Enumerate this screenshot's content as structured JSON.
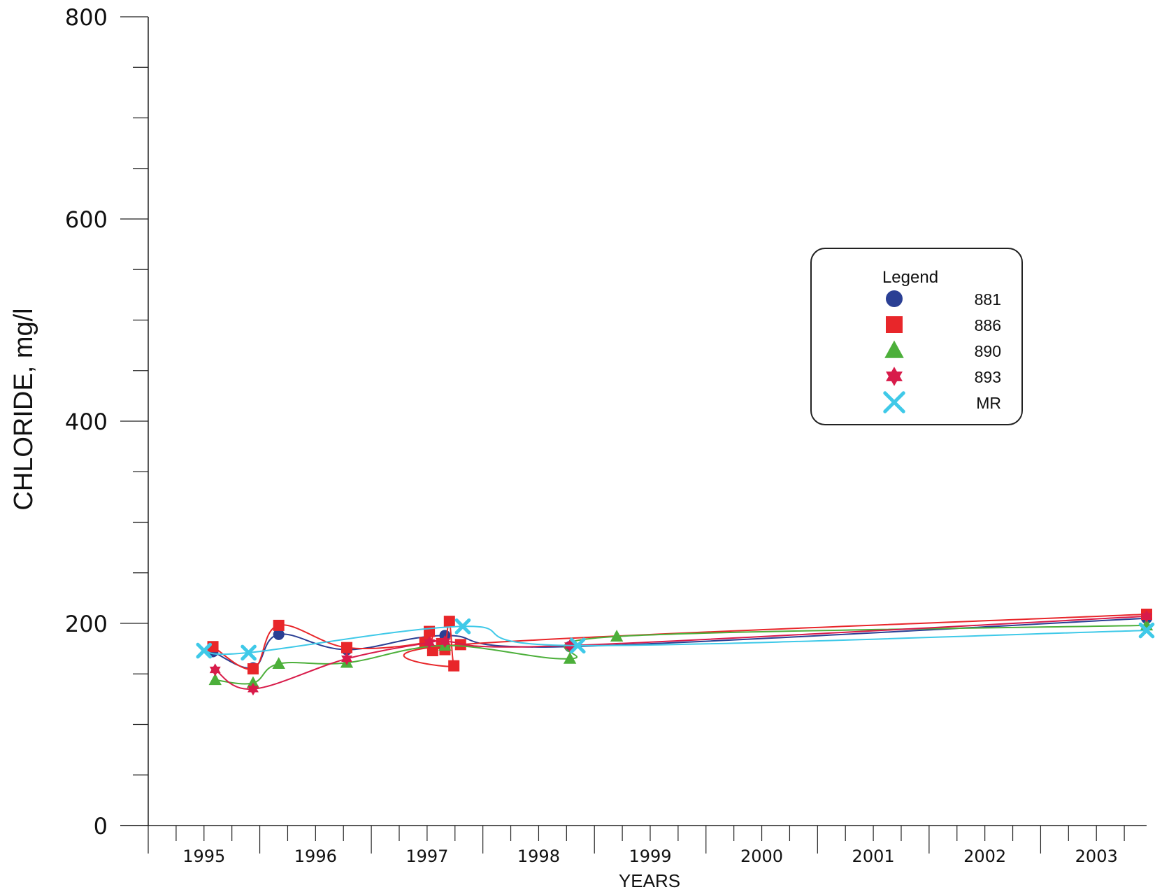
{
  "chart_data": {
    "type": "line",
    "title": "",
    "xlabel": "YEARS",
    "ylabel": "CHLORIDE, mg/l",
    "xlim": [
      1994.5,
      2003.45
    ],
    "ylim": [
      0,
      800
    ],
    "y_ticks": [
      0,
      200,
      400,
      600,
      800
    ],
    "y_tick_labels": [
      "0",
      "200",
      "400",
      "600",
      "800"
    ],
    "x_tick_labels": [
      "1995",
      "1996",
      "1997",
      "1998",
      "1999",
      "2000",
      "2001",
      "2002",
      "2003"
    ],
    "x_tick_values": [
      1995,
      1996,
      1997,
      1998,
      1999,
      2000,
      2001,
      2002,
      2003
    ],
    "grid": false,
    "legend": {
      "title": "Legend",
      "placement": "right",
      "entries": [
        "881",
        "886",
        "890",
        "893",
        "MR"
      ]
    },
    "series": [
      {
        "name": "881",
        "color": "#2a3f94",
        "marker": "circle",
        "x": [
          1995.08,
          1995.44,
          1995.67,
          1996.28,
          1997.16,
          1998.28,
          2003.45
        ],
        "y": [
          172,
          156,
          189,
          174,
          188,
          177,
          205
        ]
      },
      {
        "name": "886",
        "color": "#e8262a",
        "marker": "square",
        "x": [
          1995.08,
          1995.44,
          1995.67,
          1996.28,
          1996.98,
          1997.02,
          1997.05,
          1997.13,
          1997.16,
          1997.2,
          1997.24,
          1997.3,
          2003.45
        ],
        "y": [
          177,
          155,
          198,
          176,
          181,
          192,
          173,
          180,
          174,
          202,
          158,
          179,
          209
        ]
      },
      {
        "name": "890",
        "color": "#4caf3a",
        "marker": "triangle",
        "x": [
          1995.1,
          1995.44,
          1995.67,
          1996.28,
          1997.16,
          1998.28,
          1998.7,
          2003.45
        ],
        "y": [
          144,
          141,
          160,
          161,
          178,
          165,
          187,
          198
        ]
      },
      {
        "name": "893",
        "color": "#d81b4a",
        "marker": "star",
        "x": [
          1995.1,
          1995.44,
          1996.28,
          1997.02,
          1997.16,
          1998.28,
          2003.45
        ],
        "y": [
          154,
          135,
          165,
          181,
          182,
          178,
          207
        ]
      },
      {
        "name": "MR",
        "color": "#3fc9e8",
        "marker": "x",
        "x": [
          1995.0,
          1995.4,
          1997.32,
          1998.35,
          2003.45
        ],
        "y": [
          173,
          171,
          197,
          178,
          193
        ]
      }
    ]
  }
}
